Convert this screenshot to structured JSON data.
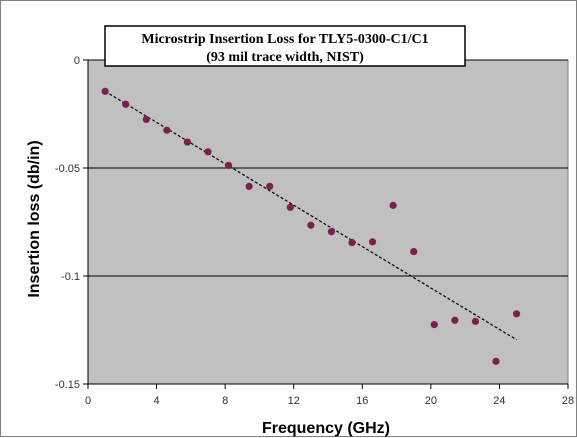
{
  "chart_data": {
    "type": "scatter",
    "title": "Microstrip Insertion Loss for TLY5-0300-C1/C1",
    "subtitle": "(93 mil trace width, NIST)",
    "xlabel": "Frequency (GHz)",
    "ylabel": "Insertion loss (db/in)",
    "xlim": [
      0,
      28
    ],
    "ylim": [
      -0.15,
      0
    ],
    "x_ticks": [
      0,
      4,
      8,
      12,
      16,
      20,
      24,
      28
    ],
    "x_tick_labels": [
      "0",
      "4",
      "8",
      "12",
      "16",
      "20",
      "24",
      "28"
    ],
    "y_ticks": [
      0,
      -0.05,
      -0.1,
      -0.15
    ],
    "y_tick_labels": [
      "0",
      "-0.05",
      "-0.1",
      "-0.15"
    ],
    "grid": "horizontal",
    "series": [
      {
        "marker": "circle",
        "color": "#7a1f4e",
        "x": [
          1.0,
          2.2,
          3.4,
          4.6,
          5.8,
          7.0,
          8.2,
          9.4,
          10.6,
          11.8,
          13.0,
          14.2,
          15.4,
          16.6,
          17.8,
          19.0,
          20.2,
          21.4,
          22.6,
          23.8,
          25.0
        ],
        "y": [
          -0.0145,
          -0.0205,
          -0.0275,
          -0.0325,
          -0.038,
          -0.0425,
          -0.0488,
          -0.0585,
          -0.0585,
          -0.0682,
          -0.0765,
          -0.0795,
          -0.0845,
          -0.0842,
          -0.0673,
          -0.0887,
          -0.1225,
          -0.1205,
          -0.121,
          -0.1395,
          -0.1175
        ]
      },
      {
        "style": "dashed-trendline",
        "color": "#000000",
        "x": [
          1.0,
          25.0
        ],
        "y": [
          -0.0145,
          -0.1295
        ]
      }
    ]
  },
  "colors": {
    "plot_background": "#c0c0c0",
    "gridline": "#000000",
    "marker": "#7a1f4e"
  }
}
